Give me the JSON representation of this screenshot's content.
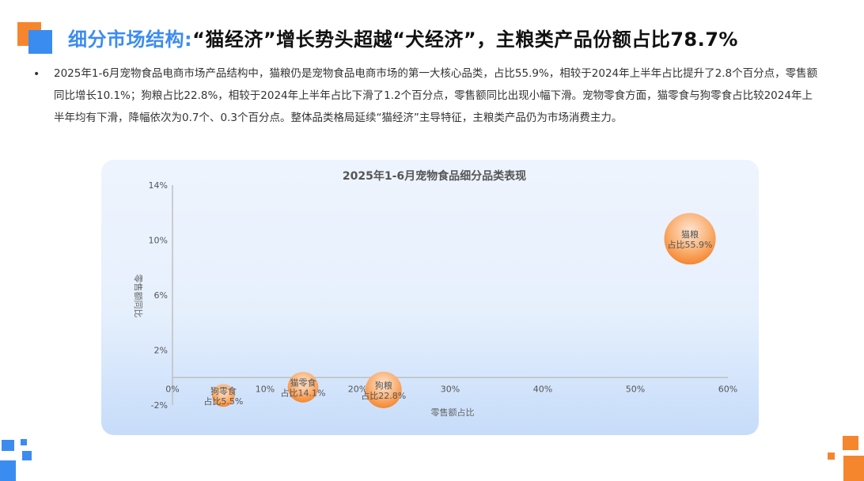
{
  "page": {
    "title_prefix": "细分市场结构:",
    "title_main": "“猫经济”增长势头超越“犬经济”，主粮类产品份额占比78.7%",
    "bullet": "2025年1-6月宠物食品电商市场产品结构中，猫粮仍是宠物食品电商市场的第一大核心品类，占比55.9%，相较于2024年上半年占比提升了2.8个百分点，零售额同比增长10.1%；狗粮占比22.8%，相较于2024年上半年占比下滑了1.2个百分点，零售额同比出现小幅下滑。宠物零食方面，猫零食与狗零食占比较2024年上半年均有下滑，降幅依次为0.7个、0.3个百分点。整体品类格局延续“猫经济”主导特征，主粮类产品仍为市场消费主力。",
    "accent_blue": "#3b8cf0",
    "accent_orange": "#f5862e"
  },
  "chart_data": {
    "type": "scatter",
    "title": "2025年1-6月宠物食品细分品类表现",
    "xlabel": "零售额占比",
    "ylabel": "零售额同比",
    "xlim": [
      0,
      60
    ],
    "ylim": [
      -2,
      14
    ],
    "x_ticks": [
      0,
      10,
      20,
      30,
      40,
      50,
      60
    ],
    "x_tick_labels": [
      "0%",
      "10%",
      "20%",
      "30%",
      "40%",
      "50%",
      "60%"
    ],
    "y_ticks": [
      -2,
      2,
      6,
      10,
      14
    ],
    "y_tick_labels": [
      "-2%",
      "2%",
      "6%",
      "10%",
      "14%"
    ],
    "grid": false,
    "points": [
      {
        "label": "狗零食",
        "sub": "占比5.5%",
        "x": 5.5,
        "y": -1.3
      },
      {
        "label": "猫零食",
        "sub": "占比14.1%",
        "x": 14.1,
        "y": -0.7
      },
      {
        "label": "狗粮",
        "sub": "占比22.8%",
        "x": 22.8,
        "y": -0.9
      },
      {
        "label": "猫粮",
        "sub": "占比55.9%",
        "x": 55.9,
        "y": 10.1
      }
    ]
  }
}
